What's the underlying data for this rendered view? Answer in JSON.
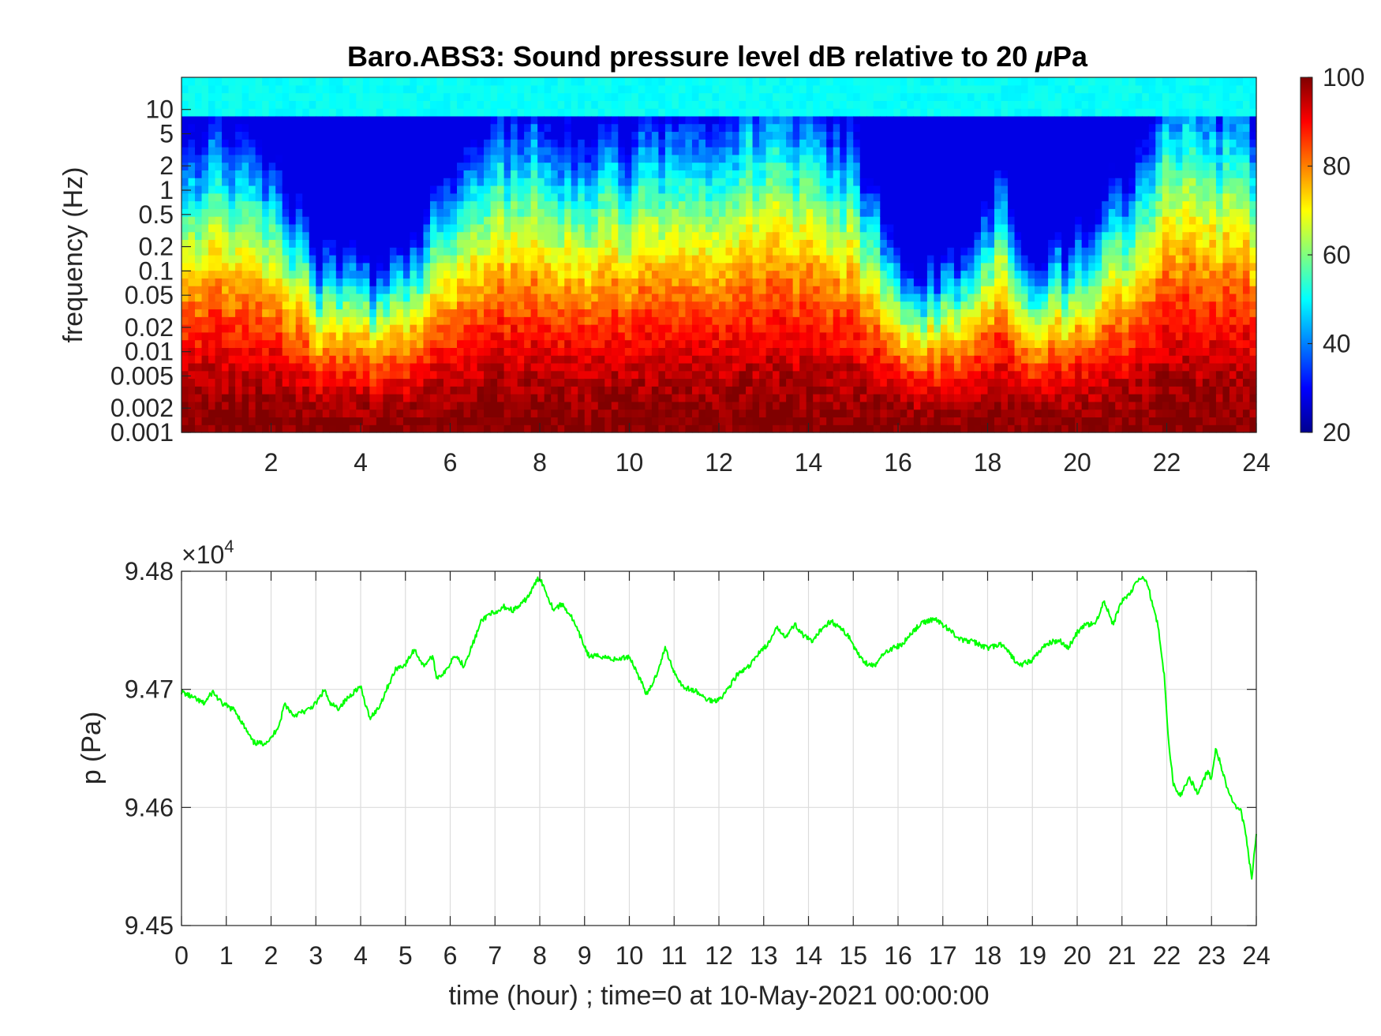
{
  "chart_data": [
    {
      "type": "heatmap",
      "title": "Baro.ABS3: Sound pressure level dB relative to 20 μPa",
      "title_main": "Baro.ABS3: Sound pressure level dB relative to 20 ",
      "title_mu": "μ",
      "title_unit": "Pa",
      "xlabel": "",
      "ylabel": "frequency (Hz)",
      "y_scale": "log",
      "xlim": [
        0,
        24
      ],
      "ylim": [
        0.001,
        25
      ],
      "x_ticks": [
        2,
        4,
        6,
        8,
        10,
        12,
        14,
        16,
        18,
        20,
        22,
        24
      ],
      "y_ticks": [
        0.001,
        0.002,
        0.005,
        0.01,
        0.02,
        0.05,
        0.1,
        0.2,
        0.5,
        1,
        2,
        5,
        10
      ],
      "colormap": "jet",
      "colorbar": {
        "ticks": [
          20,
          40,
          60,
          80,
          100
        ],
        "range": [
          20,
          100
        ],
        "placement": "right"
      },
      "quiet_windows_hours": [
        [
          3.0,
          5.5
        ],
        [
          15.8,
          17.8
        ],
        [
          18.5,
          20.3
        ]
      ],
      "loud_windows_hours": [
        [
          0.0,
          2.5
        ],
        [
          6.0,
          15.5
        ],
        [
          21.6,
          23.8
        ]
      ]
    },
    {
      "type": "line",
      "xlabel": "time (hour) ; time=0 at 10-May-2021 00:00:00",
      "ylabel": "p (Pa)",
      "exponent_base": "×10",
      "exponent_power": "4",
      "xlim": [
        0,
        24
      ],
      "ylim": [
        9.45,
        9.48
      ],
      "x_ticks": [
        0,
        1,
        2,
        3,
        4,
        5,
        6,
        7,
        8,
        9,
        10,
        11,
        12,
        13,
        14,
        15,
        16,
        17,
        18,
        19,
        20,
        21,
        22,
        23,
        24
      ],
      "y_ticks": [
        "9.45",
        "9.46",
        "9.47",
        "9.48"
      ],
      "grid": true,
      "line_color": "#00ff00",
      "series": [
        {
          "x": [
            0,
            0.25,
            0.5,
            0.7,
            0.9,
            1.2,
            1.45,
            1.6,
            1.8,
            2.0,
            2.2,
            2.3,
            2.5,
            2.8,
            3.0,
            3.2,
            3.3,
            3.5,
            3.7,
            3.9,
            4.0,
            4.1,
            4.2,
            4.4,
            4.6,
            4.8,
            5.0,
            5.2,
            5.4,
            5.6,
            5.7,
            5.9,
            6.1,
            6.3,
            6.5,
            6.7,
            6.9,
            7.0,
            7.2,
            7.4,
            7.6,
            7.8,
            7.9,
            8.0,
            8.1,
            8.3,
            8.5,
            8.7,
            8.9,
            9.1,
            9.4,
            9.7,
            10.0,
            10.2,
            10.4,
            10.6,
            10.8,
            11.0,
            11.2,
            11.5,
            11.7,
            11.9,
            12.1,
            12.4,
            12.7,
            12.9,
            13.1,
            13.3,
            13.5,
            13.7,
            13.9,
            14.1,
            14.3,
            14.5,
            14.7,
            14.9,
            15.1,
            15.3,
            15.5,
            15.7,
            15.9,
            16.1,
            16.3,
            16.5,
            16.8,
            17.1,
            17.4,
            17.7,
            18.0,
            18.3,
            18.5,
            18.7,
            19.0,
            19.3,
            19.6,
            19.8,
            20.0,
            20.2,
            20.4,
            20.6,
            20.8,
            21.0,
            21.2,
            21.3,
            21.5,
            21.6,
            21.8,
            21.95,
            22.05,
            22.15,
            22.3,
            22.5,
            22.7,
            22.9,
            23.0,
            23.1,
            23.25,
            23.4,
            23.55,
            23.65,
            23.75,
            23.9,
            24.0
          ],
          "values": [
            9.4698,
            9.4693,
            9.4688,
            9.4698,
            9.4688,
            9.4682,
            9.4665,
            9.4655,
            9.4654,
            9.4658,
            9.4672,
            9.4688,
            9.4678,
            9.4682,
            9.4688,
            9.47,
            9.4688,
            9.4684,
            9.4692,
            9.47,
            9.4702,
            9.4688,
            9.4676,
            9.4684,
            9.4702,
            9.4718,
            9.4721,
            9.4734,
            9.472,
            9.4728,
            9.471,
            9.4715,
            9.473,
            9.472,
            9.4738,
            9.4758,
            9.4765,
            9.4763,
            9.477,
            9.4767,
            9.4772,
            9.4782,
            9.479,
            9.4795,
            9.4786,
            9.4768,
            9.4772,
            9.4762,
            9.4745,
            9.4728,
            9.4728,
            9.4725,
            9.4728,
            9.4712,
            9.4695,
            9.4712,
            9.4735,
            9.4715,
            9.4702,
            9.4698,
            9.4692,
            9.469,
            9.4695,
            9.4712,
            9.472,
            9.4732,
            9.4738,
            9.4752,
            9.4745,
            9.4755,
            9.4745,
            9.474,
            9.4752,
            9.4758,
            9.4752,
            9.4745,
            9.473,
            9.4722,
            9.472,
            9.4732,
            9.4735,
            9.4738,
            9.4748,
            9.4755,
            9.476,
            9.4752,
            9.4742,
            9.474,
            9.4735,
            9.4738,
            9.473,
            9.472,
            9.4725,
            9.4738,
            9.4742,
            9.4735,
            9.4748,
            9.4755,
            9.4755,
            9.4775,
            9.4755,
            9.4775,
            9.4782,
            9.479,
            9.4795,
            9.4785,
            9.4755,
            9.471,
            9.465,
            9.462,
            9.461,
            9.4625,
            9.4612,
            9.463,
            9.4625,
            9.465,
            9.463,
            9.461,
            9.46,
            9.4598,
            9.458,
            9.454,
            9.4577
          ]
        }
      ]
    }
  ]
}
